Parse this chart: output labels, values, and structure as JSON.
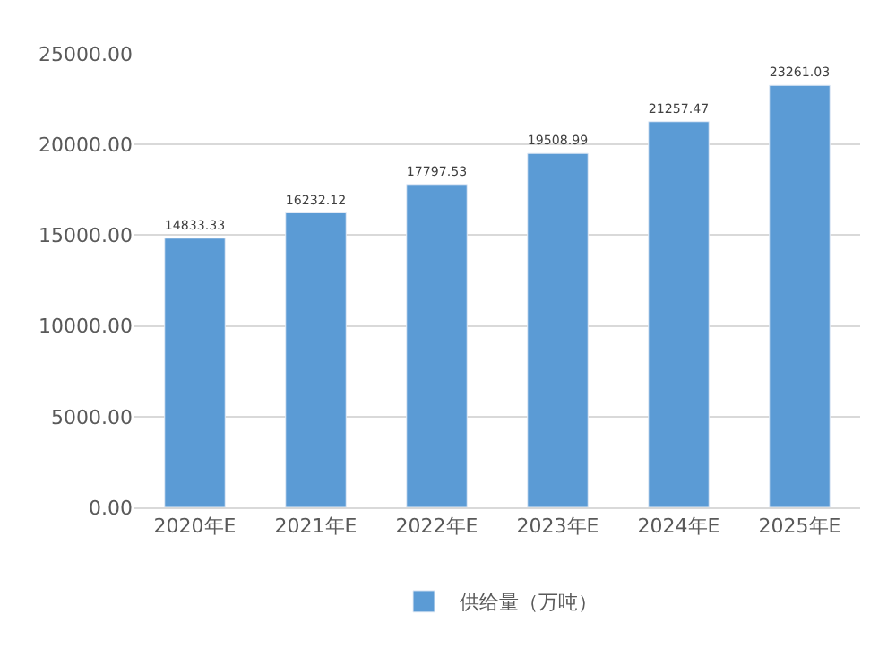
{
  "chart_data": {
    "type": "bar",
    "categories": [
      "2020年E",
      "2021年E",
      "2022年E",
      "2023年E",
      "2024年E",
      "2025年E"
    ],
    "series": [
      {
        "name": "供给量（万吨）",
        "color": "#5b9bd5",
        "values": [
          14833.33,
          16232.12,
          17797.53,
          19508.99,
          21257.47,
          23261.03
        ]
      }
    ],
    "ylim": [
      0,
      25000
    ],
    "yticks": [
      {
        "value": 0,
        "label": "0.00"
      },
      {
        "value": 5000,
        "label": "5000.00"
      },
      {
        "value": 10000,
        "label": "10000.00"
      },
      {
        "value": 15000,
        "label": "15000.00"
      },
      {
        "value": 20000,
        "label": "20000.00"
      },
      {
        "value": 25000,
        "label": "25000.00"
      }
    ],
    "grid": "y",
    "legend": "bottom",
    "data_labels": true
  }
}
